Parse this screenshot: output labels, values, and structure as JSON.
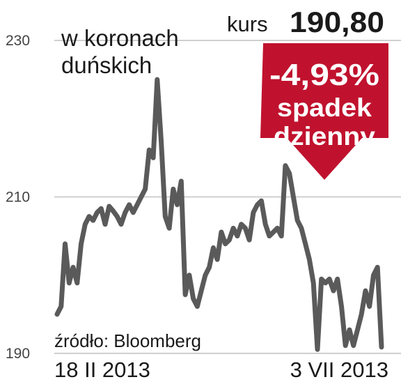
{
  "chart_data": {
    "type": "line",
    "unit_label": "w koronach duńskich",
    "source": "źródło: Bloomberg",
    "kurs_label": "kurs",
    "kurs_value": "190,80",
    "badge": {
      "percent": "-4,93%",
      "line1": "spadek",
      "line2": "dzienny"
    },
    "ylim": [
      190,
      230
    ],
    "yticks": [
      230,
      210,
      190
    ],
    "x_start_label": "18 II 2013",
    "x_end_label": "3 VII 2013",
    "series": [
      {
        "values": [
          195.0,
          196.0,
          204.0,
          199.0,
          201.0,
          199.0,
          204.0,
          206.5,
          207.5,
          207.0,
          208.0,
          208.5,
          206.5,
          208.8,
          208.2,
          207.5,
          206.5,
          208.0,
          209.0,
          208.0,
          209.0,
          210.0,
          211.0,
          216.0,
          215.0,
          225.0,
          217.0,
          207.5,
          206.0,
          211.0,
          209.0,
          212.0,
          197.5,
          200.0,
          197.0,
          196.0,
          198.0,
          200.0,
          201.0,
          203.5,
          202.0,
          205.5,
          204.0,
          204.5,
          206.0,
          205.0,
          206.5,
          206.0,
          204.5,
          208.0,
          209.0,
          209.5,
          206.5,
          205.0,
          205.5,
          206.0,
          205.0,
          214.0,
          213.0,
          210.0,
          207.0,
          206.0,
          204.0,
          202.0,
          199.0,
          190.5,
          199.5,
          199.0,
          199.5,
          198.0,
          199.5,
          196.0,
          191.0,
          193.0,
          191.0,
          193.0,
          195.0,
          198.0,
          196.0,
          200.0,
          201.0,
          190.8
        ]
      }
    ]
  },
  "colors": {
    "line": "#5a5a5a",
    "grid": "#cfcfcf",
    "badge": "#c0122e",
    "badge_text": "#ffffff",
    "text": "#1a1a1a",
    "tick_text": "#444444"
  }
}
